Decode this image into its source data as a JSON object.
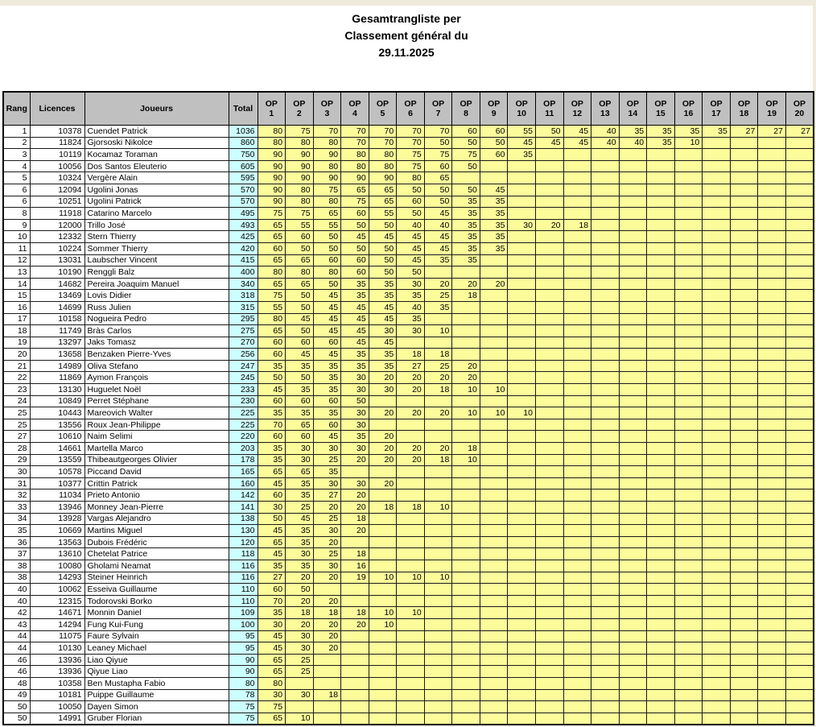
{
  "page": {
    "title_line1": "Gesamtrangliste per",
    "title_line2": "Classement général du",
    "title_line3": "29.11.2025"
  },
  "colors": {
    "header_bg": "#C0C0C0",
    "total_bg": "#CCFFFF",
    "op_bg": "#FCFC9B",
    "page_bg": "#FFFFFF",
    "frame_bg": "#EFEBDC",
    "grid": "#000000"
  },
  "table": {
    "headers": {
      "rang": "Rang",
      "licences": "Licences",
      "joueurs": "Joueurs",
      "total": "Total",
      "op_prefix": "OP",
      "op_numbers": [
        "1",
        "2",
        "3",
        "4",
        "5",
        "6",
        "7",
        "8",
        "9",
        "10",
        "11",
        "12",
        "13",
        "14",
        "15",
        "16",
        "17",
        "18",
        "19",
        "20"
      ]
    },
    "rows": [
      {
        "rang": "1",
        "licence": "10378",
        "joueur": "Cuendet Patrick",
        "total": "1036",
        "ops": [
          80,
          75,
          70,
          70,
          70,
          70,
          70,
          60,
          60,
          55,
          50,
          45,
          40,
          35,
          35,
          35,
          35,
          27,
          27,
          27
        ]
      },
      {
        "rang": "2",
        "licence": "11824",
        "joueur": "Gjorsoski Nikolce",
        "total": "860",
        "ops": [
          80,
          80,
          80,
          70,
          70,
          70,
          50,
          50,
          50,
          45,
          45,
          45,
          40,
          40,
          35,
          10
        ]
      },
      {
        "rang": "3",
        "licence": "10119",
        "joueur": "Kocamaz Toraman",
        "total": "750",
        "ops": [
          90,
          90,
          90,
          80,
          80,
          75,
          75,
          75,
          60,
          35
        ]
      },
      {
        "rang": "4",
        "licence": "10056",
        "joueur": "Dos Santos Eleuterio",
        "total": "605",
        "ops": [
          90,
          90,
          80,
          80,
          80,
          75,
          60,
          50
        ]
      },
      {
        "rang": "5",
        "licence": "10324",
        "joueur": "Vergère Alain",
        "total": "595",
        "ops": [
          90,
          90,
          90,
          90,
          90,
          80,
          65
        ]
      },
      {
        "rang": "6",
        "licence": "12094",
        "joueur": "Ugolini Jonas",
        "total": "570",
        "ops": [
          90,
          80,
          75,
          65,
          65,
          50,
          50,
          50,
          45
        ]
      },
      {
        "rang": "6",
        "licence": "10251",
        "joueur": "Ugolini Patrick",
        "total": "570",
        "ops": [
          90,
          80,
          80,
          75,
          65,
          60,
          50,
          35,
          35
        ]
      },
      {
        "rang": "8",
        "licence": "11918",
        "joueur": "Catarino Marcelo",
        "total": "495",
        "ops": [
          75,
          75,
          65,
          60,
          55,
          50,
          45,
          35,
          35
        ]
      },
      {
        "rang": "9",
        "licence": "12000",
        "joueur": "Trillo José",
        "total": "493",
        "ops": [
          65,
          55,
          55,
          50,
          50,
          40,
          40,
          35,
          35,
          30,
          20,
          18
        ]
      },
      {
        "rang": "10",
        "licence": "12332",
        "joueur": "Stern Thierry",
        "total": "425",
        "ops": [
          65,
          60,
          50,
          45,
          45,
          45,
          45,
          35,
          35
        ]
      },
      {
        "rang": "11",
        "licence": "10224",
        "joueur": "Sommer Thierry",
        "total": "420",
        "ops": [
          60,
          50,
          50,
          50,
          50,
          45,
          45,
          35,
          35
        ]
      },
      {
        "rang": "12",
        "licence": "13031",
        "joueur": "Laubscher Vincent",
        "total": "415",
        "ops": [
          65,
          65,
          60,
          60,
          50,
          45,
          35,
          35
        ]
      },
      {
        "rang": "13",
        "licence": "10190",
        "joueur": "Renggli Balz",
        "total": "400",
        "ops": [
          80,
          80,
          80,
          60,
          50,
          50
        ]
      },
      {
        "rang": "14",
        "licence": "14682",
        "joueur": "Pereira Joaquim Manuel",
        "total": "340",
        "ops": [
          65,
          65,
          50,
          35,
          35,
          30,
          20,
          20,
          20
        ]
      },
      {
        "rang": "15",
        "licence": "13469",
        "joueur": "Lovis Didier",
        "total": "318",
        "ops": [
          75,
          50,
          45,
          35,
          35,
          35,
          25,
          18
        ]
      },
      {
        "rang": "16",
        "licence": "14699",
        "joueur": "Russ Julien",
        "total": "315",
        "ops": [
          55,
          50,
          45,
          45,
          45,
          40,
          35
        ]
      },
      {
        "rang": "17",
        "licence": "10158",
        "joueur": "Nogueira Pedro",
        "total": "295",
        "ops": [
          80,
          45,
          45,
          45,
          45,
          35
        ]
      },
      {
        "rang": "18",
        "licence": "11749",
        "joueur": "Bràs Carlos",
        "total": "275",
        "ops": [
          65,
          50,
          45,
          45,
          30,
          30,
          10
        ]
      },
      {
        "rang": "19",
        "licence": "13297",
        "joueur": "Jaks Tomasz",
        "total": "270",
        "ops": [
          60,
          60,
          60,
          45,
          45
        ]
      },
      {
        "rang": "20",
        "licence": "13658",
        "joueur": "Benzaken Pierre-Yves",
        "total": "256",
        "ops": [
          60,
          45,
          45,
          35,
          35,
          18,
          18
        ]
      },
      {
        "rang": "21",
        "licence": "14989",
        "joueur": "Oliva Stefano",
        "total": "247",
        "ops": [
          35,
          35,
          35,
          35,
          35,
          27,
          25,
          20
        ]
      },
      {
        "rang": "22",
        "licence": "11869",
        "joueur": "Aymon François",
        "total": "245",
        "ops": [
          50,
          50,
          35,
          30,
          20,
          20,
          20,
          20
        ]
      },
      {
        "rang": "23",
        "licence": "13130",
        "joueur": "Huguelet Noël",
        "total": "233",
        "ops": [
          45,
          35,
          35,
          30,
          30,
          20,
          18,
          10,
          10
        ]
      },
      {
        "rang": "24",
        "licence": "10849",
        "joueur": "Perret Stéphane",
        "total": "230",
        "ops": [
          60,
          60,
          60,
          50
        ]
      },
      {
        "rang": "25",
        "licence": "10443",
        "joueur": "Mareovich Walter",
        "total": "225",
        "ops": [
          35,
          35,
          35,
          30,
          20,
          20,
          20,
          10,
          10,
          10
        ]
      },
      {
        "rang": "25",
        "licence": "13556",
        "joueur": "Roux Jean-Philippe",
        "total": "225",
        "ops": [
          70,
          65,
          60,
          30
        ]
      },
      {
        "rang": "27",
        "licence": "10610",
        "joueur": "Naim Selimi",
        "total": "220",
        "ops": [
          60,
          60,
          45,
          35,
          20
        ]
      },
      {
        "rang": "28",
        "licence": "14661",
        "joueur": "Martella Marco",
        "total": "203",
        "ops": [
          35,
          30,
          30,
          30,
          20,
          20,
          20,
          18
        ]
      },
      {
        "rang": "29",
        "licence": "13559",
        "joueur": "Thibeautgeorges Olivier",
        "total": "178",
        "ops": [
          35,
          30,
          25,
          20,
          20,
          20,
          18,
          10
        ]
      },
      {
        "rang": "30",
        "licence": "10578",
        "joueur": "Piccand David",
        "total": "165",
        "ops": [
          65,
          65,
          35
        ]
      },
      {
        "rang": "31",
        "licence": "10377",
        "joueur": "Crittin Patrick",
        "total": "160",
        "ops": [
          45,
          35,
          30,
          30,
          20
        ]
      },
      {
        "rang": "32",
        "licence": "11034",
        "joueur": "Prieto Antonio",
        "total": "142",
        "ops": [
          60,
          35,
          27,
          20
        ]
      },
      {
        "rang": "33",
        "licence": "13946",
        "joueur": "Monney Jean-Pierre",
        "total": "141",
        "ops": [
          30,
          25,
          20,
          20,
          18,
          18,
          10
        ]
      },
      {
        "rang": "34",
        "licence": "13928",
        "joueur": "Vargas Alejandro",
        "total": "138",
        "ops": [
          50,
          45,
          25,
          18
        ]
      },
      {
        "rang": "35",
        "licence": "10669",
        "joueur": "Martins Miguel",
        "total": "130",
        "ops": [
          45,
          35,
          30,
          20
        ]
      },
      {
        "rang": "36",
        "licence": "13563",
        "joueur": "Dubois Frédéric",
        "total": "120",
        "ops": [
          65,
          35,
          20
        ]
      },
      {
        "rang": "37",
        "licence": "13610",
        "joueur": "Chetelat Patrice",
        "total": "118",
        "ops": [
          45,
          30,
          25,
          18
        ]
      },
      {
        "rang": "38",
        "licence": "10080",
        "joueur": "Gholami Neamat",
        "total": "116",
        "ops": [
          35,
          35,
          30,
          16
        ]
      },
      {
        "rang": "38",
        "licence": "14293",
        "joueur": "Steiner Heinrich",
        "total": "116",
        "ops": [
          27,
          20,
          20,
          19,
          10,
          10,
          10
        ]
      },
      {
        "rang": "40",
        "licence": "10062",
        "joueur": "Esseiva Guillaume",
        "total": "110",
        "ops": [
          60,
          50
        ]
      },
      {
        "rang": "40",
        "licence": "12315",
        "joueur": "Todorovski Borko",
        "total": "110",
        "ops": [
          70,
          20,
          20
        ]
      },
      {
        "rang": "42",
        "licence": "14671",
        "joueur": "Monnin Daniel",
        "total": "109",
        "ops": [
          35,
          18,
          18,
          18,
          10,
          10
        ]
      },
      {
        "rang": "43",
        "licence": "14294",
        "joueur": "Fung Kui-Fung",
        "total": "100",
        "ops": [
          30,
          20,
          20,
          20,
          10
        ]
      },
      {
        "rang": "44",
        "licence": "11075",
        "joueur": "Faure Sylvain",
        "total": "95",
        "ops": [
          45,
          30,
          20
        ]
      },
      {
        "rang": "44",
        "licence": "10130",
        "joueur": "Leaney Michael",
        "total": "95",
        "ops": [
          45,
          30,
          20
        ]
      },
      {
        "rang": "46",
        "licence": "13936",
        "joueur": "Liao Qiyue",
        "total": "90",
        "ops": [
          65,
          25
        ]
      },
      {
        "rang": "46",
        "licence": "13936",
        "joueur": "Qiyue Liao",
        "total": "90",
        "ops": [
          65,
          25
        ]
      },
      {
        "rang": "48",
        "licence": "10358",
        "joueur": "Ben Mustapha Fabio",
        "total": "80",
        "ops": [
          80
        ]
      },
      {
        "rang": "49",
        "licence": "10181",
        "joueur": "Puippe Guillaume",
        "total": "78",
        "ops": [
          30,
          30,
          18
        ]
      },
      {
        "rang": "50",
        "licence": "10050",
        "joueur": "Dayen Simon",
        "total": "75",
        "ops": [
          75
        ]
      },
      {
        "rang": "50",
        "licence": "14991",
        "joueur": "Gruber Florian",
        "total": "75",
        "ops": [
          65,
          10
        ]
      }
    ]
  }
}
